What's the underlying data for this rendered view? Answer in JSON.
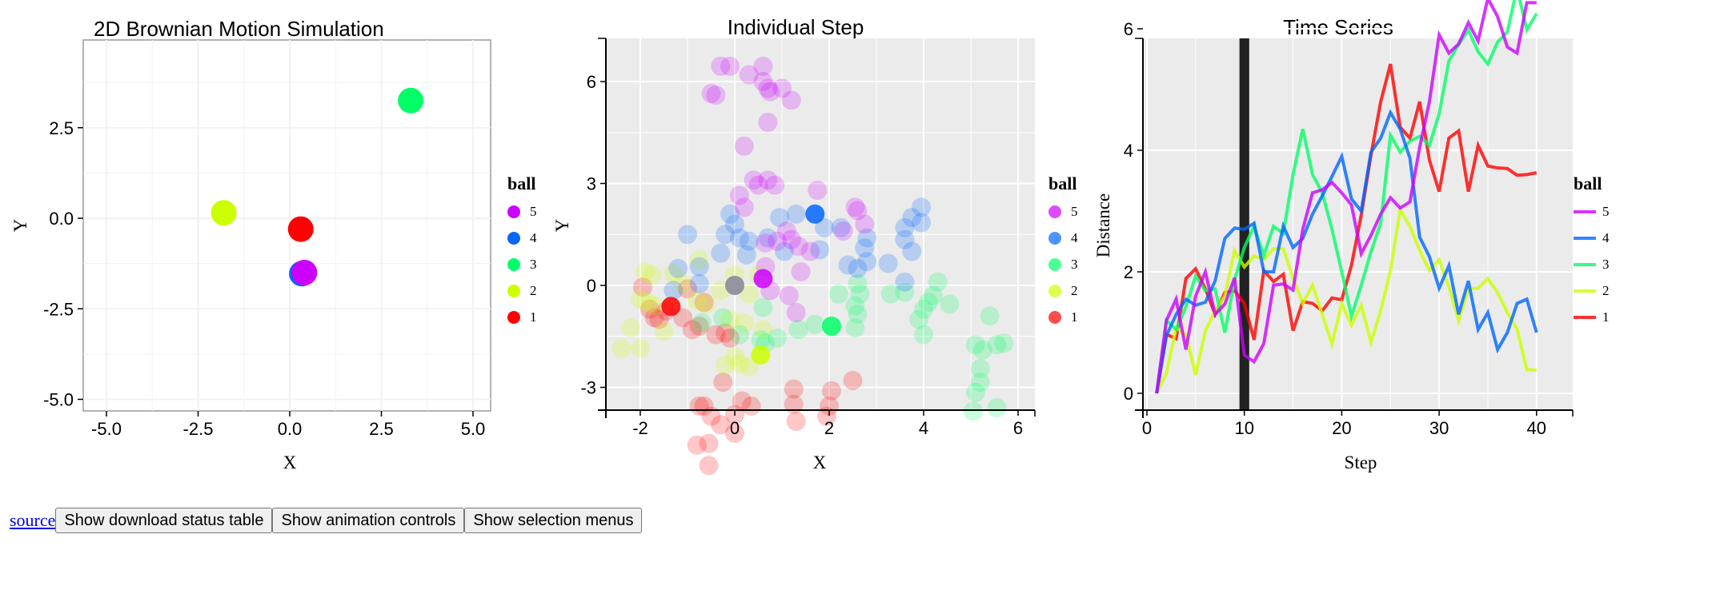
{
  "controls": {
    "source_link": "source",
    "buttons": [
      "Show download status table",
      "Show animation controls",
      "Show selection menus"
    ]
  },
  "colors": {
    "5": "#CC00FF",
    "4": "#0066FF",
    "3": "#00FF66",
    "2": "#CCFF00",
    "1": "#FF0000"
  },
  "legend": {
    "title": "ball",
    "entries": [
      "5",
      "4",
      "3",
      "2",
      "1"
    ]
  },
  "chart_data": [
    {
      "type": "scatter",
      "title": "2D Brownian Motion Simulation",
      "xlabel": "X",
      "ylabel": "Y",
      "xlim": [
        -5.5,
        5.5
      ],
      "ylim": [
        -5.3,
        4.9
      ],
      "xticks": [
        "-5.0",
        "-2.5",
        "0.0",
        "2.5",
        "5.0"
      ],
      "yticks": [
        "2.5",
        "0.0",
        "-2.5",
        "-5.0"
      ],
      "grid": true,
      "legend_position": "right",
      "points": [
        {
          "ball": "3",
          "x": 3.3,
          "y": 3.25
        },
        {
          "ball": "2",
          "x": -1.8,
          "y": 0.15
        },
        {
          "ball": "1",
          "x": 0.3,
          "y": -0.3
        },
        {
          "ball": "4",
          "x": 0.33,
          "y": -1.53
        },
        {
          "ball": "5",
          "x": 0.4,
          "y": -1.5
        }
      ]
    },
    {
      "type": "scatter",
      "title": "Individual Step",
      "xlabel": "X",
      "ylabel": "Y",
      "xlim": [
        -2.8,
        6.1
      ],
      "ylim": [
        -5.9,
        7.1
      ],
      "xticks": [
        "-2",
        "0",
        "2",
        "4",
        "6"
      ],
      "yticks": [
        "6",
        "3",
        "0",
        "-3"
      ],
      "grid": true,
      "legend_position": "right",
      "current": [
        {
          "ball": "5",
          "x": 0.6,
          "y": 0.2
        },
        {
          "ball": "4",
          "x": 1.7,
          "y": 2.1
        },
        {
          "ball": "3",
          "x": 2.05,
          "y": -1.2
        },
        {
          "ball": "2",
          "x": 0.55,
          "y": -2.05
        },
        {
          "ball": "1",
          "x": -1.35,
          "y": -0.62
        },
        {
          "ball": "0",
          "x": 0.0,
          "y": 0.0
        }
      ],
      "trails": {
        "5": [
          [
            -0.3,
            6.45
          ],
          [
            -0.1,
            6.45
          ],
          [
            0.3,
            6.2
          ],
          [
            0.6,
            6.45
          ],
          [
            0.6,
            6.0
          ],
          [
            0.7,
            5.8
          ],
          [
            0.75,
            5.7
          ],
          [
            1.0,
            5.8
          ],
          [
            1.2,
            5.45
          ],
          [
            -0.5,
            5.65
          ],
          [
            -0.4,
            5.6
          ],
          [
            0.7,
            4.8
          ],
          [
            0.2,
            4.1
          ],
          [
            0.4,
            3.1
          ],
          [
            0.5,
            2.95
          ],
          [
            0.7,
            3.1
          ],
          [
            0.85,
            2.95
          ],
          [
            0.1,
            2.65
          ],
          [
            0.2,
            2.3
          ],
          [
            1.75,
            2.8
          ],
          [
            2.55,
            2.3
          ],
          [
            2.6,
            2.2
          ],
          [
            2.75,
            1.8
          ],
          [
            2.3,
            1.6
          ],
          [
            1.1,
            1.6
          ],
          [
            1.2,
            1.35
          ],
          [
            1.35,
            1.15
          ],
          [
            0.9,
            1.3
          ],
          [
            0.65,
            1.25
          ],
          [
            0.65,
            0.55
          ],
          [
            1.4,
            0.4
          ],
          [
            1.6,
            1.0
          ],
          [
            0.75,
            -0.15
          ],
          [
            1.15,
            -0.3
          ],
          [
            1.3,
            -0.8
          ]
        ],
        "4": [
          [
            -1.0,
            1.5
          ],
          [
            -0.1,
            2.1
          ],
          [
            0.0,
            1.8
          ],
          [
            -0.2,
            1.5
          ],
          [
            0.1,
            1.4
          ],
          [
            0.3,
            1.3
          ],
          [
            0.7,
            1.4
          ],
          [
            0.95,
            2.0
          ],
          [
            1.3,
            2.1
          ],
          [
            1.9,
            1.7
          ],
          [
            2.25,
            1.7
          ],
          [
            -0.3,
            0.95
          ],
          [
            0.25,
            0.9
          ],
          [
            1.05,
            1.0
          ],
          [
            1.8,
            1.05
          ],
          [
            2.4,
            0.6
          ],
          [
            2.6,
            0.5
          ],
          [
            2.8,
            1.4
          ],
          [
            2.75,
            1.1
          ],
          [
            2.8,
            0.7
          ],
          [
            3.25,
            0.65
          ],
          [
            3.6,
            1.7
          ],
          [
            3.6,
            1.35
          ],
          [
            3.75,
            2.0
          ],
          [
            3.95,
            2.3
          ],
          [
            3.95,
            1.85
          ],
          [
            3.75,
            1.0
          ],
          [
            3.6,
            0.1
          ],
          [
            -0.75,
            0.55
          ],
          [
            -1.2,
            0.5
          ],
          [
            -1.3,
            -0.15
          ],
          [
            -0.75,
            0.05
          ]
        ],
        "3": [
          [
            2.2,
            -0.25
          ],
          [
            2.6,
            0.05
          ],
          [
            2.65,
            -0.25
          ],
          [
            2.55,
            -0.6
          ],
          [
            2.6,
            -0.85
          ],
          [
            2.55,
            -1.25
          ],
          [
            3.3,
            -0.25
          ],
          [
            3.6,
            -0.2
          ],
          [
            4.3,
            0.1
          ],
          [
            4.2,
            -0.3
          ],
          [
            4.1,
            -0.5
          ],
          [
            4.0,
            -0.7
          ],
          [
            4.55,
            -0.55
          ],
          [
            3.9,
            -1.0
          ],
          [
            4.0,
            -1.45
          ],
          [
            5.4,
            -0.9
          ],
          [
            5.1,
            -1.75
          ],
          [
            5.25,
            -1.9
          ],
          [
            5.55,
            -1.75
          ],
          [
            5.7,
            -1.7
          ],
          [
            5.2,
            -2.45
          ],
          [
            5.2,
            -2.85
          ],
          [
            5.1,
            -3.15
          ],
          [
            5.05,
            -3.7
          ],
          [
            5.55,
            -3.6
          ],
          [
            1.35,
            -1.3
          ],
          [
            1.7,
            -1.15
          ],
          [
            0.6,
            -0.65
          ],
          [
            0.9,
            -1.55
          ],
          [
            0.55,
            -1.6
          ],
          [
            0.65,
            -1.7
          ],
          [
            -0.25,
            -0.95
          ],
          [
            0.1,
            -1.45
          ],
          [
            -0.7,
            -1.1
          ]
        ],
        "2": [
          [
            -2.4,
            -1.85
          ],
          [
            -2.0,
            -1.85
          ],
          [
            -2.2,
            -1.25
          ],
          [
            -1.9,
            0.4
          ],
          [
            -1.75,
            0.3
          ],
          [
            -1.3,
            0.35
          ],
          [
            -0.75,
            0.75
          ],
          [
            -1.1,
            0.05
          ],
          [
            -2.0,
            -0.4
          ],
          [
            -1.5,
            -1.35
          ],
          [
            -0.3,
            -0.15
          ],
          [
            0.0,
            0.3
          ],
          [
            0.3,
            -0.25
          ],
          [
            0.5,
            0.3
          ],
          [
            -0.1,
            -1.0
          ],
          [
            0.2,
            -1.1
          ],
          [
            0.0,
            -2.1
          ],
          [
            0.1,
            -2.3
          ],
          [
            -0.2,
            -2.35
          ],
          [
            0.3,
            -2.4
          ],
          [
            0.6,
            -1.3
          ],
          [
            -1.85,
            -0.5
          ],
          [
            -1.7,
            -0.6
          ],
          [
            -0.8,
            -0.45
          ],
          [
            -0.6,
            -0.55
          ]
        ],
        "1": [
          [
            -1.95,
            -0.05
          ],
          [
            -1.8,
            -0.7
          ],
          [
            -1.7,
            -0.95
          ],
          [
            -1.6,
            -1.0
          ],
          [
            -1.45,
            -0.75
          ],
          [
            -1.1,
            -0.95
          ],
          [
            -0.9,
            -1.3
          ],
          [
            -0.75,
            -1.2
          ],
          [
            -0.65,
            -0.5
          ],
          [
            -1.0,
            -0.1
          ],
          [
            -0.4,
            -1.45
          ],
          [
            -0.2,
            -1.4
          ],
          [
            -0.1,
            -1.55
          ],
          [
            -0.25,
            -2.85
          ],
          [
            -0.75,
            -3.55
          ],
          [
            -0.65,
            -3.55
          ],
          [
            -0.5,
            -3.85
          ],
          [
            -0.3,
            -4.1
          ],
          [
            0.0,
            -3.8
          ],
          [
            0.15,
            -3.4
          ],
          [
            0.35,
            -3.55
          ],
          [
            0.0,
            -4.35
          ],
          [
            -0.8,
            -4.7
          ],
          [
            -0.55,
            -4.65
          ],
          [
            -0.55,
            -5.3
          ],
          [
            1.25,
            -3.05
          ],
          [
            1.25,
            -3.5
          ],
          [
            1.3,
            -4.0
          ],
          [
            2.05,
            -3.1
          ],
          [
            2.0,
            -3.55
          ],
          [
            1.95,
            -3.85
          ],
          [
            2.5,
            -2.8
          ]
        ]
      }
    },
    {
      "type": "line",
      "title": "Time Series",
      "xlabel": "Step",
      "ylabel": "Distance",
      "xlim": [
        -1.5,
        42.5
      ],
      "ylim": [
        -0.35,
        6.9
      ],
      "xticks": [
        "0",
        "10",
        "20",
        "30",
        "40"
      ],
      "yticks": [
        "0",
        "2",
        "4",
        "6"
      ],
      "grid": true,
      "legend_position": "right",
      "highlight_step": 10,
      "x": [
        1,
        2,
        3,
        4,
        5,
        6,
        7,
        8,
        9,
        10,
        11,
        12,
        13,
        14,
        15,
        16,
        17,
        18,
        19,
        20,
        21,
        22,
        23,
        24,
        25,
        26,
        27,
        28,
        29,
        30,
        31,
        32,
        33,
        34,
        35,
        36,
        37,
        38,
        39,
        40
      ],
      "series": [
        {
          "name": "5",
          "values": [
            0,
            1.2,
            1.55,
            0.72,
            1.6,
            2.0,
            1.3,
            1.47,
            1.9,
            0.63,
            0.52,
            0.82,
            1.78,
            1.8,
            1.7,
            2.7,
            3.3,
            3.35,
            3.47,
            3.3,
            3.1,
            2.3,
            2.6,
            2.95,
            3.22,
            3.05,
            3.15,
            4.05,
            4.8,
            5.9,
            5.6,
            5.75,
            6.1,
            5.8,
            6.5,
            6.2,
            5.7,
            5.6,
            6.43,
            6.43
          ]
        },
        {
          "name": "4",
          "values": [
            0,
            0.95,
            1.3,
            1.55,
            1.45,
            1.5,
            1.85,
            2.55,
            2.72,
            2.7,
            2.8,
            2.0,
            2.0,
            2.75,
            2.4,
            2.55,
            2.95,
            3.25,
            3.57,
            3.9,
            3.2,
            3.0,
            3.97,
            4.2,
            4.62,
            4.35,
            3.87,
            2.57,
            2.25,
            1.73,
            2.1,
            1.3,
            1.85,
            1.05,
            1.33,
            0.72,
            1.0,
            1.48,
            1.55,
            1.0
          ]
        },
        {
          "name": "3",
          "values": [
            0,
            1.2,
            1.05,
            1.42,
            1.93,
            1.69,
            1.72,
            1.0,
            1.87,
            2.4,
            2.75,
            2.27,
            2.75,
            2.63,
            3.6,
            4.35,
            3.6,
            3.3,
            2.7,
            2.0,
            1.27,
            1.78,
            2.33,
            2.8,
            4.25,
            3.97,
            4.15,
            4.23,
            4.08,
            4.6,
            5.47,
            5.74,
            5.98,
            5.62,
            5.42,
            5.78,
            5.95,
            6.67,
            5.98,
            6.25
          ]
        },
        {
          "name": "2",
          "values": [
            0,
            0.33,
            1.08,
            0.97,
            0.3,
            1.03,
            1.36,
            1.6,
            2.35,
            2.08,
            2.26,
            2.2,
            2.38,
            2.38,
            1.9,
            1.48,
            1.78,
            1.3,
            0.81,
            1.48,
            1.12,
            1.45,
            0.84,
            1.36,
            2.02,
            3.02,
            2.75,
            2.35,
            2.02,
            2.2,
            1.75,
            1.2,
            1.72,
            1.73,
            1.89,
            1.66,
            1.33,
            1.06,
            0.39,
            0.38
          ]
        },
        {
          "name": "1",
          "values": [
            0,
            0.97,
            0.9,
            1.89,
            2.05,
            1.72,
            1.3,
            1.66,
            1.69,
            1.48,
            0.88,
            2.02,
            1.84,
            1.96,
            1.03,
            1.51,
            1.48,
            1.36,
            1.57,
            1.54,
            2.11,
            2.93,
            3.92,
            4.8,
            5.42,
            4.38,
            4.2,
            4.8,
            3.84,
            3.32,
            4.2,
            4.32,
            3.32,
            4.08,
            3.74,
            3.71,
            3.7,
            3.59,
            3.6,
            3.63
          ]
        }
      ]
    }
  ]
}
